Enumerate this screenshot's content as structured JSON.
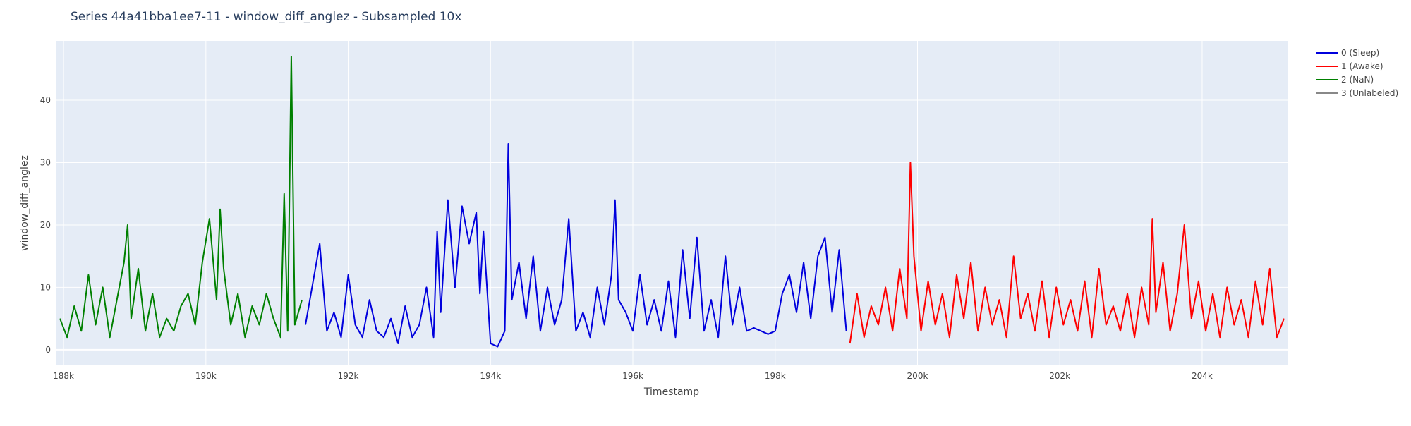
{
  "chart_data": {
    "type": "line",
    "title": "Series 44a41bba1ee7-11 - window_diff_anglez - Subsampled 10x",
    "xlabel": "Timestamp",
    "ylabel": "window_diff_anglez",
    "xlim": [
      187900,
      205200
    ],
    "ylim": [
      -2.5,
      49.5
    ],
    "x_ticks": [
      188000,
      190000,
      192000,
      194000,
      196000,
      198000,
      200000,
      202000,
      204000
    ],
    "x_tick_labels": [
      "188k",
      "190k",
      "192k",
      "194k",
      "196k",
      "198k",
      "200k",
      "202k",
      "204k"
    ],
    "y_ticks": [
      0,
      10,
      20,
      30,
      40
    ],
    "y_tick_labels": [
      "0",
      "10",
      "20",
      "30",
      "40"
    ],
    "grid": true,
    "legend_position": "top-right",
    "colors": {
      "plot_bg": "#e5ecf6",
      "grid": "#ffffff",
      "text": "#444444",
      "title": "#2a3f5f"
    },
    "series": [
      {
        "name": "0 (Sleep)",
        "color": "#0000dd",
        "x": [
          191400,
          191600,
          191700,
          191800,
          191900,
          192000,
          192100,
          192200,
          192300,
          192400,
          192500,
          192600,
          192700,
          192800,
          192900,
          193000,
          193100,
          193200,
          193250,
          193300,
          193400,
          193500,
          193600,
          193700,
          193800,
          193850,
          193900,
          194000,
          194100,
          194200,
          194250,
          194300,
          194400,
          194500,
          194600,
          194700,
          194800,
          194900,
          195000,
          195100,
          195200,
          195300,
          195400,
          195500,
          195600,
          195700,
          195750,
          195800,
          195900,
          196000,
          196100,
          196200,
          196300,
          196400,
          196500,
          196600,
          196700,
          196800,
          196900,
          197000,
          197100,
          197200,
          197300,
          197400,
          197500,
          197600,
          197700,
          197800,
          197900,
          198000,
          198100,
          198200,
          198300,
          198400,
          198500,
          198600,
          198700,
          198800,
          198900,
          199000
        ],
        "y": [
          4,
          17,
          3,
          6,
          2,
          12,
          4,
          2,
          8,
          3,
          2,
          5,
          1,
          7,
          2,
          4,
          10,
          2,
          19,
          6,
          24,
          10,
          23,
          17,
          22,
          9,
          19,
          1,
          0.5,
          3,
          33,
          8,
          14,
          5,
          15,
          3,
          10,
          4,
          8,
          21,
          3,
          6,
          2,
          10,
          4,
          12,
          24,
          8,
          6,
          3,
          12,
          4,
          8,
          3,
          11,
          2,
          16,
          5,
          18,
          3,
          8,
          2,
          15,
          4,
          10,
          3,
          3.5,
          3,
          2.5,
          3,
          9,
          12,
          6,
          14,
          5,
          15,
          18,
          6,
          16,
          3
        ]
      },
      {
        "name": "1 (Awake)",
        "color": "#ff0000",
        "x": [
          199050,
          199150,
          199250,
          199350,
          199450,
          199550,
          199650,
          199750,
          199850,
          199900,
          199950,
          200050,
          200150,
          200250,
          200350,
          200450,
          200550,
          200650,
          200750,
          200850,
          200950,
          201050,
          201150,
          201250,
          201350,
          201450,
          201550,
          201650,
          201750,
          201850,
          201950,
          202050,
          202150,
          202250,
          202350,
          202450,
          202550,
          202650,
          202750,
          202850,
          202950,
          203050,
          203150,
          203250,
          203300,
          203350,
          203450,
          203550,
          203650,
          203750,
          203850,
          203950,
          204050,
          204150,
          204250,
          204350,
          204450,
          204550,
          204650,
          204750,
          204850,
          204950,
          205050,
          205150
        ],
        "y": [
          1,
          9,
          2,
          7,
          4,
          10,
          3,
          13,
          5,
          30,
          15,
          3,
          11,
          4,
          9,
          2,
          12,
          5,
          14,
          3,
          10,
          4,
          8,
          2,
          15,
          5,
          9,
          3,
          11,
          2,
          10,
          4,
          8,
          3,
          11,
          2,
          13,
          4,
          7,
          3,
          9,
          2,
          10,
          4,
          21,
          6,
          14,
          3,
          9,
          20,
          5,
          11,
          3,
          9,
          2,
          10,
          4,
          8,
          2,
          11,
          4,
          13,
          2,
          5
        ]
      },
      {
        "name": "2 (NaN)",
        "color": "#008000",
        "x": [
          187950,
          188050,
          188150,
          188250,
          188350,
          188450,
          188550,
          188650,
          188750,
          188850,
          188900,
          188950,
          189050,
          189150,
          189250,
          189350,
          189450,
          189550,
          189650,
          189750,
          189850,
          189950,
          190050,
          190150,
          190200,
          190250,
          190350,
          190450,
          190550,
          190650,
          190750,
          190850,
          190950,
          191050,
          191100,
          191150,
          191200,
          191250,
          191350
        ],
        "y": [
          5,
          2,
          7,
          3,
          12,
          4,
          10,
          2,
          8,
          14,
          20,
          5,
          13,
          3,
          9,
          2,
          5,
          3,
          7,
          9,
          4,
          14,
          21,
          8,
          22.5,
          13,
          4,
          9,
          2,
          7,
          4,
          9,
          5,
          2,
          25,
          3,
          47,
          4,
          8
        ]
      },
      {
        "name": "3 (Unlabeled)",
        "color": "#888888",
        "x": [],
        "y": []
      }
    ]
  }
}
